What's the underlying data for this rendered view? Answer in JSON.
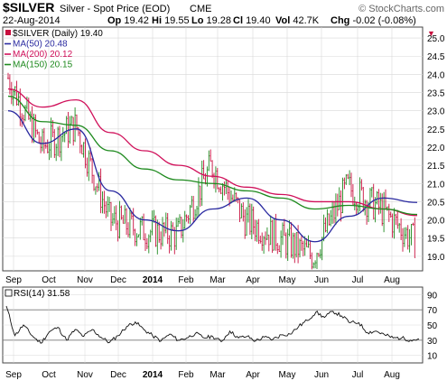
{
  "header": {
    "symbol": "$SILVER",
    "description": "Silver - Spot Price (EOD)",
    "exchange": "CME",
    "watermark": "© StockCharts.com",
    "date": "22-Aug-2014",
    "ohlc": [
      {
        "label": "Op",
        "value": "19.42"
      },
      {
        "label": "Hi",
        "value": "19.55"
      },
      {
        "label": "Lo",
        "value": "19.28"
      },
      {
        "label": "Cl",
        "value": "19.40"
      },
      {
        "label": "Vol",
        "value": "42.7K"
      },
      {
        "label": "Chg",
        "value": "-0.02 (-0.08%)"
      }
    ],
    "direction_marker": "▼"
  },
  "colors": {
    "background": "#ffffff",
    "grid": "#d8d8d8",
    "up_bar": "#1f8a1f",
    "down_bar": "#c8103f",
    "ma50": "#2a2aa0",
    "ma200": "#d0105a",
    "ma150": "#1e8a1e",
    "rsi_line": "#111111",
    "rsi_fill": "#4f8a4f",
    "text": "#000000"
  },
  "chart_data": [
    {
      "type": "candlestick",
      "legend_placement": "top-left",
      "legend": [
        {
          "label": "$SILVER (Daily) 19.40",
          "color": "#000000"
        },
        {
          "label": "MA(50) 20.48",
          "color": "#2a2aa0"
        },
        {
          "label": "MA(200) 20.12",
          "color": "#d0105a"
        },
        {
          "label": "MA(150) 20.15",
          "color": "#1e8a1e"
        }
      ],
      "y_axis": {
        "position": "right",
        "ylim": [
          18.6,
          25.3
        ],
        "ticks": [
          "25.0",
          "24.5",
          "24.0",
          "23.5",
          "23.0",
          "22.5",
          "22.0",
          "21.5",
          "21.0",
          "20.5",
          "20.0",
          "19.5",
          "19.0"
        ]
      },
      "x_axis": {
        "labels": [
          "Sep",
          "Oct",
          "Nov",
          "Dec",
          "2014",
          "Feb",
          "Mar",
          "Apr",
          "May",
          "Jun",
          "Jul",
          "Aug"
        ]
      },
      "grid": true,
      "x": [
        "Sep",
        "Oct",
        "Nov",
        "Dec",
        "Jan 2014",
        "Feb",
        "Mar",
        "Apr",
        "May",
        "Jun",
        "Jul",
        "Aug",
        "22-Aug"
      ],
      "series": [
        {
          "name": "$SILVER",
          "values": [
            23.9,
            22.0,
            22.6,
            20.0,
            19.7,
            19.6,
            21.5,
            20.0,
            19.5,
            19.0,
            20.9,
            20.3,
            19.4
          ]
        },
        {
          "name": "MA(50)",
          "values": [
            23.0,
            22.1,
            22.5,
            20.8,
            20.0,
            19.7,
            20.3,
            20.6,
            20.0,
            19.4,
            20.1,
            20.6,
            20.48
          ]
        },
        {
          "name": "MA(200)",
          "values": [
            23.6,
            23.1,
            23.3,
            22.4,
            21.9,
            21.5,
            21.2,
            20.9,
            20.7,
            20.5,
            20.5,
            20.3,
            20.12
          ]
        },
        {
          "name": "MA(150)",
          "values": [
            23.4,
            22.7,
            22.6,
            21.9,
            21.4,
            21.1,
            21.0,
            20.8,
            20.6,
            20.3,
            20.4,
            20.3,
            20.15
          ]
        }
      ]
    },
    {
      "type": "line",
      "legend": [
        {
          "label": "RSI(14) 31.58",
          "color": "#000000"
        }
      ],
      "y_axis": {
        "position": "right",
        "ylim": [
          0,
          100
        ],
        "ticks": [
          "90",
          "70",
          "50",
          "30",
          "10"
        ],
        "reference_lines": [
          70,
          30
        ]
      },
      "x_axis": {
        "labels": [
          "Sep",
          "Oct",
          "Nov",
          "Dec",
          "2014",
          "Feb",
          "Mar",
          "Apr",
          "May",
          "Jun",
          "Jul",
          "Aug"
        ]
      },
      "series": [
        {
          "name": "RSI(14)",
          "values": [
            75,
            36,
            50,
            36,
            26,
            41,
            47,
            30,
            44,
            35,
            44,
            34,
            27,
            36,
            48,
            54,
            44,
            36,
            29,
            38,
            30,
            33,
            39,
            33,
            35,
            28,
            42,
            33,
            35,
            29,
            34,
            31,
            37,
            38,
            48,
            56,
            67,
            60,
            68,
            62,
            53,
            53,
            40,
            42,
            37,
            33,
            33,
            30,
            31.58
          ]
        }
      ]
    }
  ]
}
